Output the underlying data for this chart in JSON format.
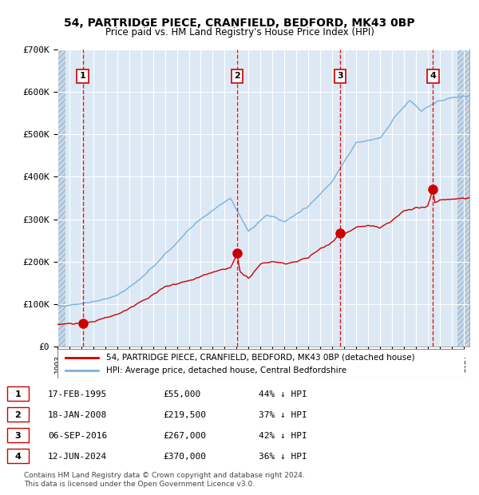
{
  "title": "54, PARTRIDGE PIECE, CRANFIELD, BEDFORD, MK43 0BP",
  "subtitle": "Price paid vs. HM Land Registry's House Price Index (HPI)",
  "ylabel": "",
  "ylim": [
    0,
    700000
  ],
  "yticks": [
    0,
    100000,
    200000,
    300000,
    400000,
    500000,
    600000,
    700000
  ],
  "ytick_labels": [
    "£0",
    "£100K",
    "£200K",
    "£300K",
    "£400K",
    "£500K",
    "£600K",
    "£700K"
  ],
  "background_color": "#dce9f5",
  "plot_bg_color": "#dce9f5",
  "hpi_color": "#7ab0d8",
  "price_color": "#cc0000",
  "sale_marker_color": "#cc0000",
  "vline_color": "#dd0000",
  "grid_color": "#ffffff",
  "hatch_color": "#b8cfe0",
  "sales": [
    {
      "date_year": 1995.12,
      "price": 55000,
      "label": "1",
      "date_str": "17-FEB-1995"
    },
    {
      "date_year": 2008.05,
      "price": 219500,
      "label": "2",
      "date_str": "18-JAN-2008"
    },
    {
      "date_year": 2016.68,
      "price": 267000,
      "label": "3",
      "date_str": "06-SEP-2016"
    },
    {
      "date_year": 2024.45,
      "price": 370000,
      "label": "4",
      "date_str": "12-JUN-2024"
    }
  ],
  "legend_entries": [
    "54, PARTRIDGE PIECE, CRANFIELD, BEDFORD, MK43 0BP (detached house)",
    "HPI: Average price, detached house, Central Bedfordshire"
  ],
  "table_rows": [
    [
      "1",
      "17-FEB-1995",
      "£55,000",
      "44% ↓ HPI"
    ],
    [
      "2",
      "18-JAN-2008",
      "£219,500",
      "37% ↓ HPI"
    ],
    [
      "3",
      "06-SEP-2016",
      "£267,000",
      "42% ↓ HPI"
    ],
    [
      "4",
      "12-JUN-2024",
      "£370,000",
      "36% ↓ HPI"
    ]
  ],
  "footer": "Contains HM Land Registry data © Crown copyright and database right 2024.\nThis data is licensed under the Open Government Licence v3.0.",
  "xmin": 1993.0,
  "xmax": 2027.5
}
